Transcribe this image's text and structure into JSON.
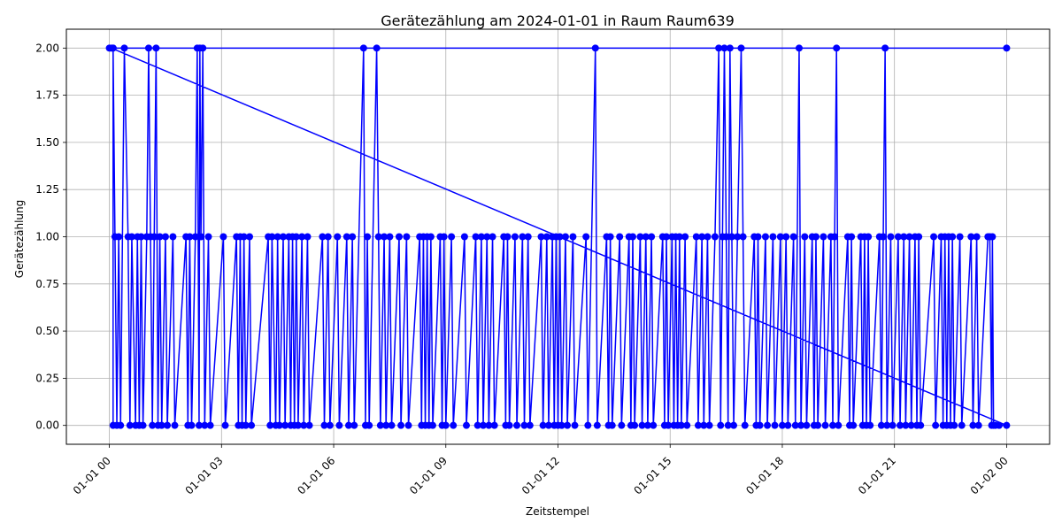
{
  "chart_data": {
    "type": "line",
    "title": "Gerätezählung am 2024-01-01 in Raum Raum639",
    "xlabel": "Zeitstempel",
    "ylabel": "Gerätezählung",
    "x_axis": {
      "ticks": [
        {
          "hours": 0,
          "label": "01-01 00"
        },
        {
          "hours": 3,
          "label": "01-01 03"
        },
        {
          "hours": 6,
          "label": "01-01 06"
        },
        {
          "hours": 9,
          "label": "01-01 09"
        },
        {
          "hours": 12,
          "label": "01-01 12"
        },
        {
          "hours": 15,
          "label": "01-01 15"
        },
        {
          "hours": 18,
          "label": "01-01 18"
        },
        {
          "hours": 21,
          "label": "01-01 21"
        },
        {
          "hours": 24,
          "label": "01-02 00"
        }
      ],
      "range_hours": [
        -1.15,
        25.15
      ]
    },
    "y_axis": {
      "ticks": [
        0.0,
        0.25,
        0.5,
        0.75,
        1.0,
        1.25,
        1.5,
        1.75,
        2.0
      ],
      "tick_labels": [
        "0.00",
        "0.25",
        "0.50",
        "0.75",
        "1.00",
        "1.25",
        "1.50",
        "1.75",
        "2.00"
      ],
      "range": [
        -0.1,
        2.1
      ]
    },
    "grid": true,
    "series": [
      {
        "color": "#0000ff",
        "marker": "circle",
        "note_x_unit": "hours after 2024-01-01 00:00",
        "points": [
          [
            0.0,
            2
          ],
          [
            0.1,
            2
          ],
          [
            0.15,
            1
          ],
          [
            0.2,
            0
          ],
          [
            0.25,
            1
          ],
          [
            0.3,
            0
          ],
          [
            0.4,
            2
          ],
          [
            0.5,
            1
          ],
          [
            0.55,
            0
          ],
          [
            0.6,
            1
          ],
          [
            0.7,
            0
          ],
          [
            0.75,
            1
          ],
          [
            0.8,
            0
          ],
          [
            0.85,
            1
          ],
          [
            0.9,
            0
          ],
          [
            1.0,
            1
          ],
          [
            1.05,
            2
          ],
          [
            1.1,
            1
          ],
          [
            1.15,
            0
          ],
          [
            1.2,
            1
          ],
          [
            1.25,
            2
          ],
          [
            1.3,
            0
          ],
          [
            1.35,
            1
          ],
          [
            1.4,
            0
          ],
          [
            1.5,
            1
          ],
          [
            1.55,
            0
          ],
          [
            1.7,
            1
          ],
          [
            1.75,
            0
          ],
          [
            2.05,
            1
          ],
          [
            2.1,
            0
          ],
          [
            2.15,
            1
          ],
          [
            2.2,
            0
          ],
          [
            2.3,
            1
          ],
          [
            2.35,
            2
          ],
          [
            2.4,
            0
          ],
          [
            2.42,
            2
          ],
          [
            2.45,
            1
          ],
          [
            2.5,
            2
          ],
          [
            2.55,
            0
          ],
          [
            2.65,
            1
          ],
          [
            2.7,
            0
          ],
          [
            3.05,
            1
          ],
          [
            3.1,
            0
          ],
          [
            3.4,
            1
          ],
          [
            3.45,
            0
          ],
          [
            3.5,
            1
          ],
          [
            3.55,
            0
          ],
          [
            3.6,
            1
          ],
          [
            3.65,
            0
          ],
          [
            3.75,
            1
          ],
          [
            3.8,
            0
          ],
          [
            4.25,
            1
          ],
          [
            4.3,
            0
          ],
          [
            4.35,
            1
          ],
          [
            4.45,
            0
          ],
          [
            4.5,
            1
          ],
          [
            4.55,
            0
          ],
          [
            4.65,
            1
          ],
          [
            4.7,
            0
          ],
          [
            4.8,
            1
          ],
          [
            4.85,
            0
          ],
          [
            4.9,
            1
          ],
          [
            4.95,
            0
          ],
          [
            5.0,
            1
          ],
          [
            5.05,
            0
          ],
          [
            5.15,
            1
          ],
          [
            5.2,
            0
          ],
          [
            5.3,
            1
          ],
          [
            5.35,
            0
          ],
          [
            5.7,
            1
          ],
          [
            5.75,
            0
          ],
          [
            5.85,
            1
          ],
          [
            5.9,
            0
          ],
          [
            6.1,
            1
          ],
          [
            6.15,
            0
          ],
          [
            6.35,
            1
          ],
          [
            6.4,
            0
          ],
          [
            6.5,
            1
          ],
          [
            6.55,
            0
          ],
          [
            6.8,
            2
          ],
          [
            6.85,
            0
          ],
          [
            6.9,
            1
          ],
          [
            6.95,
            0
          ],
          [
            7.15,
            2
          ],
          [
            7.2,
            1
          ],
          [
            7.25,
            0
          ],
          [
            7.35,
            1
          ],
          [
            7.4,
            0
          ],
          [
            7.5,
            1
          ],
          [
            7.55,
            0
          ],
          [
            7.75,
            1
          ],
          [
            7.8,
            0
          ],
          [
            7.95,
            1
          ],
          [
            8.0,
            0
          ],
          [
            8.3,
            1
          ],
          [
            8.35,
            0
          ],
          [
            8.4,
            1
          ],
          [
            8.45,
            0
          ],
          [
            8.5,
            1
          ],
          [
            8.55,
            0
          ],
          [
            8.6,
            1
          ],
          [
            8.65,
            0
          ],
          [
            8.85,
            1
          ],
          [
            8.9,
            0
          ],
          [
            8.95,
            1
          ],
          [
            9.0,
            0
          ],
          [
            9.15,
            1
          ],
          [
            9.2,
            0
          ],
          [
            9.5,
            1
          ],
          [
            9.55,
            0
          ],
          [
            9.8,
            1
          ],
          [
            9.85,
            0
          ],
          [
            9.95,
            1
          ],
          [
            10.0,
            0
          ],
          [
            10.1,
            1
          ],
          [
            10.15,
            0
          ],
          [
            10.25,
            1
          ],
          [
            10.3,
            0
          ],
          [
            10.55,
            1
          ],
          [
            10.6,
            0
          ],
          [
            10.65,
            1
          ],
          [
            10.7,
            0
          ],
          [
            10.85,
            1
          ],
          [
            10.9,
            0
          ],
          [
            11.05,
            1
          ],
          [
            11.1,
            0
          ],
          [
            11.2,
            1
          ],
          [
            11.25,
            0
          ],
          [
            11.55,
            1
          ],
          [
            11.6,
            0
          ],
          [
            11.7,
            1
          ],
          [
            11.75,
            0
          ],
          [
            11.85,
            1
          ],
          [
            11.9,
            0
          ],
          [
            11.95,
            1
          ],
          [
            12.0,
            0
          ],
          [
            12.05,
            1
          ],
          [
            12.1,
            0
          ],
          [
            12.2,
            1
          ],
          [
            12.25,
            0
          ],
          [
            12.4,
            1
          ],
          [
            12.45,
            0
          ],
          [
            12.75,
            1
          ],
          [
            12.8,
            0
          ],
          [
            13.0,
            2
          ],
          [
            13.05,
            0
          ],
          [
            13.3,
            1
          ],
          [
            13.35,
            0
          ],
          [
            13.4,
            1
          ],
          [
            13.45,
            0
          ],
          [
            13.65,
            1
          ],
          [
            13.7,
            0
          ],
          [
            13.9,
            1
          ],
          [
            13.95,
            0
          ],
          [
            14.0,
            1
          ],
          [
            14.05,
            0
          ],
          [
            14.2,
            1
          ],
          [
            14.25,
            0
          ],
          [
            14.35,
            1
          ],
          [
            14.4,
            0
          ],
          [
            14.5,
            1
          ],
          [
            14.55,
            0
          ],
          [
            14.8,
            1
          ],
          [
            14.85,
            0
          ],
          [
            14.9,
            1
          ],
          [
            14.95,
            0
          ],
          [
            15.05,
            1
          ],
          [
            15.1,
            0
          ],
          [
            15.15,
            1
          ],
          [
            15.2,
            0
          ],
          [
            15.25,
            1
          ],
          [
            15.3,
            0
          ],
          [
            15.4,
            1
          ],
          [
            15.45,
            0
          ],
          [
            15.7,
            1
          ],
          [
            15.75,
            0
          ],
          [
            15.85,
            1
          ],
          [
            15.9,
            0
          ],
          [
            16.0,
            1
          ],
          [
            16.05,
            0
          ],
          [
            16.2,
            1
          ],
          [
            16.3,
            2
          ],
          [
            16.35,
            0
          ],
          [
            16.4,
            1
          ],
          [
            16.45,
            2
          ],
          [
            16.5,
            1
          ],
          [
            16.55,
            0
          ],
          [
            16.6,
            2
          ],
          [
            16.65,
            1
          ],
          [
            16.7,
            0
          ],
          [
            16.8,
            1
          ],
          [
            16.9,
            2
          ],
          [
            16.95,
            1
          ],
          [
            17.0,
            0
          ],
          [
            17.25,
            1
          ],
          [
            17.3,
            0
          ],
          [
            17.35,
            1
          ],
          [
            17.4,
            0
          ],
          [
            17.55,
            1
          ],
          [
            17.6,
            0
          ],
          [
            17.75,
            1
          ],
          [
            17.8,
            0
          ],
          [
            17.95,
            1
          ],
          [
            18.0,
            0
          ],
          [
            18.1,
            1
          ],
          [
            18.15,
            0
          ],
          [
            18.3,
            1
          ],
          [
            18.35,
            0
          ],
          [
            18.45,
            2
          ],
          [
            18.5,
            0
          ],
          [
            18.6,
            1
          ],
          [
            18.65,
            0
          ],
          [
            18.8,
            1
          ],
          [
            18.85,
            0
          ],
          [
            18.9,
            1
          ],
          [
            18.95,
            0
          ],
          [
            19.1,
            1
          ],
          [
            19.15,
            0
          ],
          [
            19.3,
            1
          ],
          [
            19.35,
            0
          ],
          [
            19.4,
            1
          ],
          [
            19.45,
            2
          ],
          [
            19.5,
            0
          ],
          [
            19.75,
            1
          ],
          [
            19.8,
            0
          ],
          [
            19.85,
            1
          ],
          [
            19.9,
            0
          ],
          [
            20.1,
            1
          ],
          [
            20.15,
            0
          ],
          [
            20.2,
            1
          ],
          [
            20.25,
            0
          ],
          [
            20.3,
            1
          ],
          [
            20.35,
            0
          ],
          [
            20.6,
            1
          ],
          [
            20.65,
            0
          ],
          [
            20.7,
            1
          ],
          [
            20.75,
            2
          ],
          [
            20.8,
            0
          ],
          [
            20.9,
            1
          ],
          [
            20.95,
            0
          ],
          [
            21.1,
            1
          ],
          [
            21.15,
            0
          ],
          [
            21.25,
            1
          ],
          [
            21.3,
            0
          ],
          [
            21.4,
            1
          ],
          [
            21.45,
            0
          ],
          [
            21.55,
            1
          ],
          [
            21.6,
            0
          ],
          [
            21.65,
            1
          ],
          [
            21.7,
            0
          ],
          [
            22.05,
            1
          ],
          [
            22.1,
            0
          ],
          [
            22.25,
            1
          ],
          [
            22.3,
            0
          ],
          [
            22.35,
            1
          ],
          [
            22.4,
            0
          ],
          [
            22.45,
            1
          ],
          [
            22.5,
            0
          ],
          [
            22.55,
            1
          ],
          [
            22.6,
            0
          ],
          [
            22.75,
            1
          ],
          [
            22.8,
            0
          ],
          [
            23.05,
            1
          ],
          [
            23.1,
            0
          ],
          [
            23.2,
            1
          ],
          [
            23.25,
            0
          ],
          [
            23.5,
            1
          ],
          [
            23.55,
            1
          ],
          [
            23.6,
            0
          ],
          [
            23.62,
            1
          ],
          [
            23.65,
            0
          ],
          [
            23.7,
            0
          ],
          [
            23.8,
            0
          ],
          [
            24.0,
            0
          ],
          [
            0.05,
            2
          ],
          [
            24.0,
            2
          ],
          [
            0.1,
            2
          ],
          [
            0.1,
            0
          ]
        ]
      }
    ]
  }
}
